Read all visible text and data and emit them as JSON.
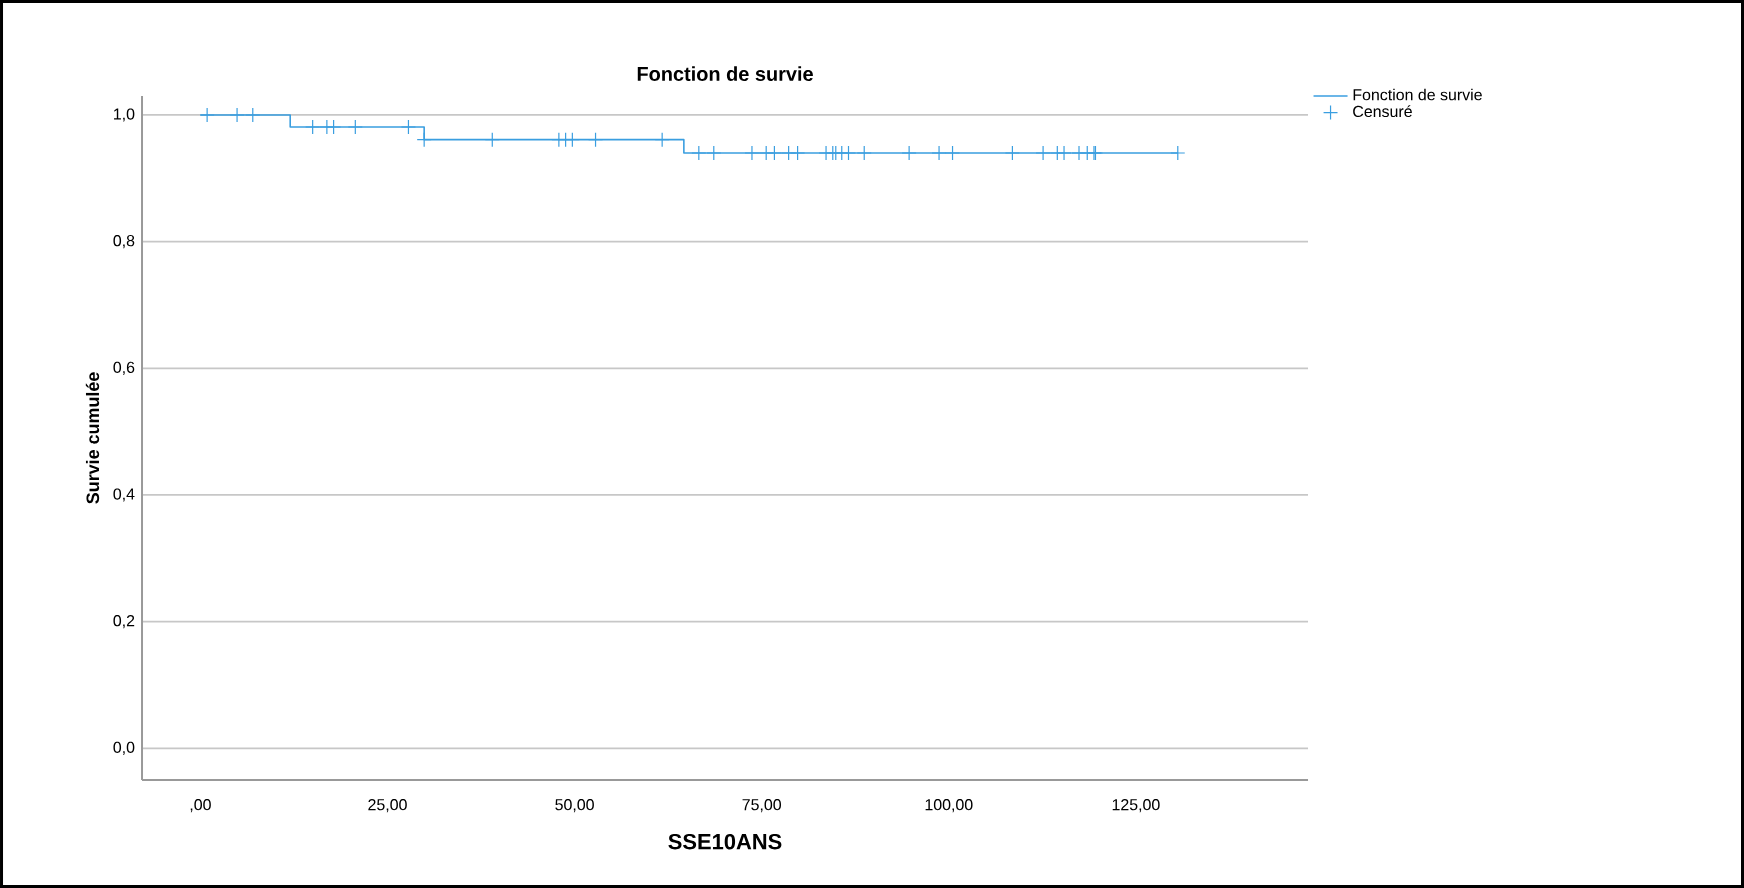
{
  "chart_data": {
    "type": "step",
    "title": "Fonction de survie",
    "xlabel": "SSE10ANS",
    "ylabel": "Survie cumulée",
    "xlim": [
      -7.8,
      148
    ],
    "ylim": [
      -0.05,
      1.03
    ],
    "xticks": [
      {
        "value": 0,
        "label": ",00"
      },
      {
        "value": 25,
        "label": "25,00"
      },
      {
        "value": 50,
        "label": "50,00"
      },
      {
        "value": 75,
        "label": "75,00"
      },
      {
        "value": 100,
        "label": "100,00"
      },
      {
        "value": 125,
        "label": "125,00"
      }
    ],
    "yticks": [
      {
        "value": 0,
        "label": "0,0"
      },
      {
        "value": 0.2,
        "label": "0,2"
      },
      {
        "value": 0.4,
        "label": "0,4"
      },
      {
        "value": 0.6,
        "label": "0,6"
      },
      {
        "value": 0.8,
        "label": "0,8"
      },
      {
        "value": 1,
        "label": "1,0"
      }
    ],
    "grid": "y",
    "legend": "top right",
    "series": [
      {
        "name": "Fonction de survie",
        "type": "step",
        "color": "#3a9ee0",
        "marker": "none",
        "x": [
          0,
          12,
          29.9,
          64.6,
          130.6
        ],
        "values": [
          1,
          0.981,
          0.961,
          0.94,
          0.94
        ]
      },
      {
        "name": "Censuré",
        "type": "scatter",
        "color": "#3a9ee0",
        "marker": "cross",
        "x": [
          0.9,
          4.9,
          7.0,
          15.0,
          16.9,
          17.8,
          20.7,
          27.8,
          29.9,
          39.0,
          47.9,
          48.8,
          49.7,
          52.8,
          61.7,
          66.6,
          68.6,
          73.7,
          75.6,
          76.7,
          78.6,
          79.8,
          83.6,
          84.5,
          84.9,
          85.7,
          86.6,
          88.7,
          94.7,
          98.7,
          100.5,
          108.5,
          112.6,
          114.5,
          115.4,
          117.4,
          118.5,
          119.4,
          119.6,
          130.6
        ],
        "values": [
          1,
          1,
          1,
          0.981,
          0.981,
          0.981,
          0.981,
          0.981,
          0.961,
          0.961,
          0.961,
          0.961,
          0.961,
          0.961,
          0.961,
          0.94,
          0.94,
          0.94,
          0.94,
          0.94,
          0.94,
          0.94,
          0.94,
          0.94,
          0.94,
          0.94,
          0.94,
          0.94,
          0.94,
          0.94,
          0.94,
          0.94,
          0.94,
          0.94,
          0.94,
          0.94,
          0.94,
          0.94,
          0.94,
          0.94
        ]
      }
    ]
  }
}
